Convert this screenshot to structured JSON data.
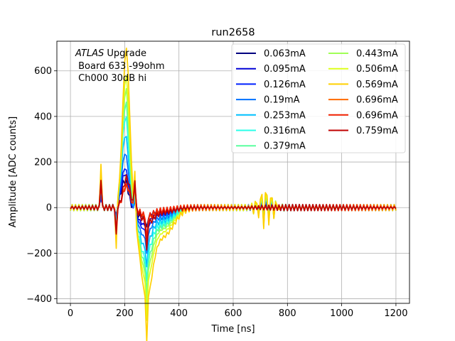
{
  "chart_data": {
    "type": "line",
    "title": "run2658",
    "xlabel": "Time [ns]",
    "ylabel": "Amplitude [ADC counts]",
    "xlim": [
      -50,
      1250
    ],
    "ylim": [
      -420,
      730
    ],
    "xticks": [
      0,
      200,
      400,
      600,
      800,
      1000,
      1200
    ],
    "yticks": [
      -400,
      -200,
      0,
      200,
      400,
      600
    ],
    "grid": true,
    "legend_position": "top-right",
    "legend_columns": 2,
    "annotation": {
      "line1_italic": "ATLAS",
      "line1_rest": " Upgrade",
      "line2": " Board 633 -99ohm",
      "line3": " Ch000 30dB hi"
    },
    "pulse_shape": {
      "noise_x": [
        0,
        1200
      ],
      "noise_step_ns": 12.5,
      "noise_amplitude": 14,
      "spike_times": [
        110,
        170,
        240,
        280
      ],
      "peak_time": 200,
      "undershoot_time": 270,
      "reflection_time": 720
    },
    "series": [
      {
        "name": "0.063mA",
        "color": "#00007f",
        "peak": 120,
        "undershoot": -45,
        "reflection": 12
      },
      {
        "name": "0.095mA",
        "color": "#0000d6",
        "peak": 150,
        "undershoot": -70,
        "reflection": 15
      },
      {
        "name": "0.126mA",
        "color": "#0020ff",
        "peak": 175,
        "undershoot": -90,
        "reflection": 18
      },
      {
        "name": "0.19mA",
        "color": "#0070ff",
        "peak": 240,
        "undershoot": -120,
        "reflection": 22
      },
      {
        "name": "0.253mA",
        "color": "#00c0ff",
        "peak": 320,
        "undershoot": -160,
        "reflection": 28
      },
      {
        "name": "0.316mA",
        "color": "#2affe8",
        "peak": 400,
        "undershoot": -200,
        "reflection": 35
      },
      {
        "name": "0.379mA",
        "color": "#5aff9f",
        "peak": 460,
        "undershoot": -230,
        "reflection": 40
      },
      {
        "name": "0.443mA",
        "color": "#a0ff56",
        "peak": 520,
        "undershoot": -260,
        "reflection": 45
      },
      {
        "name": "0.506mA",
        "color": "#ddff1a",
        "peak": 580,
        "undershoot": -300,
        "reflection": 50
      },
      {
        "name": "0.569mA",
        "color": "#ffd000",
        "peak": 700,
        "undershoot": -360,
        "reflection": 60
      },
      {
        "name": "0.696mA",
        "color": "#ff6a00",
        "peak": 100,
        "undershoot": -40,
        "reflection": 0
      },
      {
        "name": "0.696mA",
        "color": "#f02000",
        "peak": 95,
        "undershoot": -35,
        "reflection": 0
      },
      {
        "name": "0.759mA",
        "color": "#c00000",
        "peak": 130,
        "undershoot": -60,
        "reflection": 0
      }
    ]
  }
}
